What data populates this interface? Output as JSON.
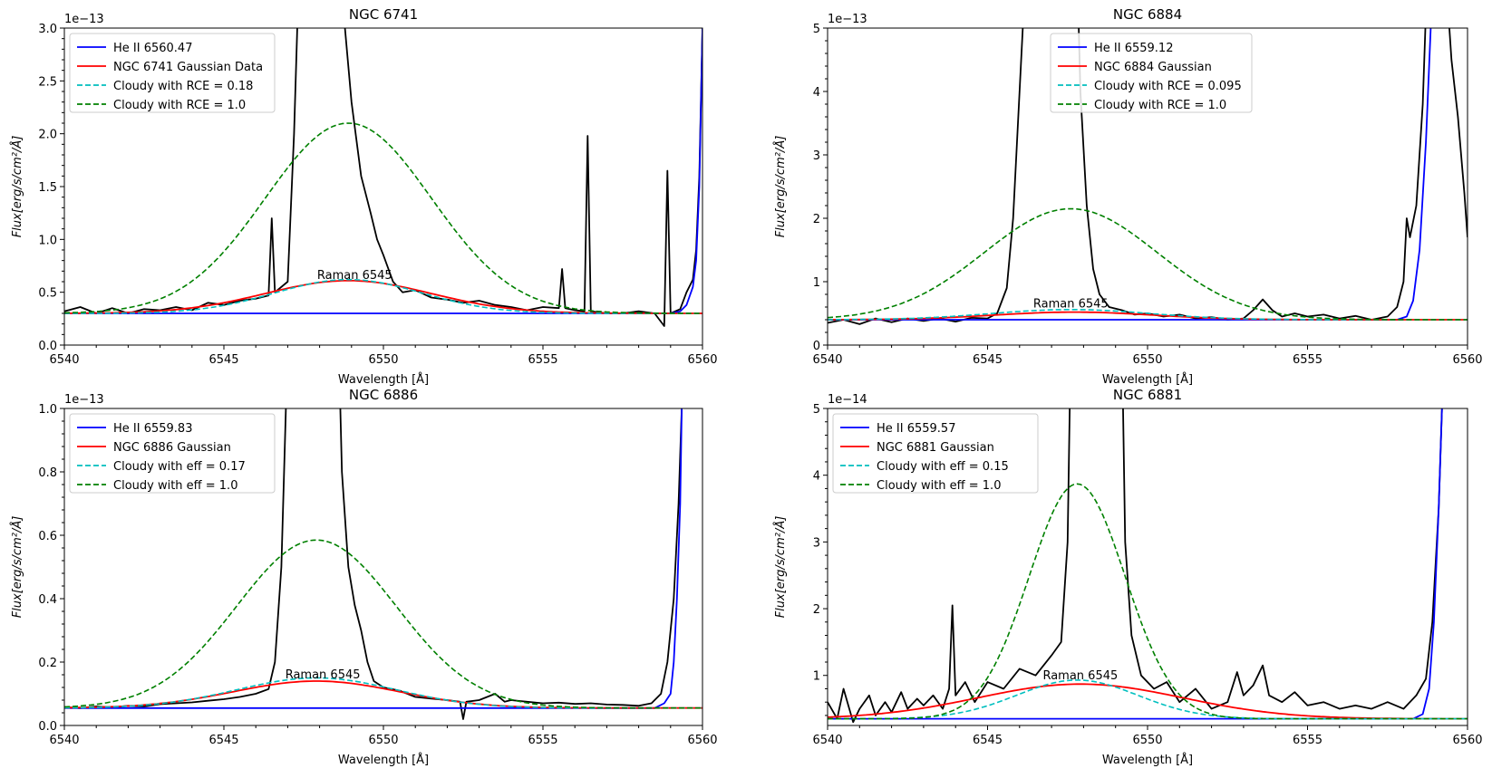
{
  "colors": {
    "observed": "#000000",
    "he_ii": "#0000ff",
    "gaussian": "#ff0000",
    "cloudy_low": "#00bfbf",
    "cloudy_high": "#008000"
  },
  "chart_data": [
    {
      "type": "line",
      "title": "NGC 6741",
      "xlabel": "Wavelength [Å]",
      "ylabel": "Flux[erg/s/cm²/Å]",
      "offset_text": "1e−13",
      "xlim": [
        6540,
        6560
      ],
      "ylim": [
        0,
        3.0
      ],
      "xticks": [
        6540,
        6545,
        6550,
        6555,
        6560
      ],
      "yticks": [
        0.0,
        0.5,
        1.0,
        1.5,
        2.0,
        2.5,
        3.0
      ],
      "ytick_labels": [
        "0.0",
        "0.5",
        "1.0",
        "1.5",
        "2.0",
        "2.5",
        "3.0"
      ],
      "legend_position": "upper-left",
      "annotation": {
        "text": "Raman 6545",
        "x": 6549.1,
        "y": 0.6
      },
      "baseline": 0.3,
      "series": [
        {
          "name": "He II 6560.47",
          "style": "solid",
          "color": "#0000ff"
        },
        {
          "name": "NGC 6741 Gaussian Data",
          "style": "solid",
          "color": "#ff0000"
        },
        {
          "name": "Cloudy with RCE = 0.18",
          "style": "dashed",
          "color": "#00bfbf"
        },
        {
          "name": "Cloudy with RCE = 1.0",
          "style": "dashed",
          "color": "#008000"
        }
      ],
      "gaussian": {
        "center": 6548.9,
        "sigma": 2.6,
        "amplitude": 0.31
      },
      "cloudy_low": {
        "center": 6548.9,
        "sigma": 2.3,
        "amplitude": 0.32
      },
      "cloudy_high": {
        "center": 6548.9,
        "sigma": 2.6,
        "amplitude": 1.8
      },
      "he_ii": {
        "start": 6559.0,
        "points": [
          [
            6559.0,
            0.3
          ],
          [
            6559.3,
            0.32
          ],
          [
            6559.5,
            0.38
          ],
          [
            6559.7,
            0.55
          ],
          [
            6559.8,
            0.8
          ],
          [
            6559.9,
            1.5
          ],
          [
            6560.0,
            3.0
          ]
        ]
      },
      "observed": [
        [
          6540,
          0.32
        ],
        [
          6540.5,
          0.36
        ],
        [
          6541,
          0.3
        ],
        [
          6541.5,
          0.35
        ],
        [
          6542,
          0.3
        ],
        [
          6542.5,
          0.34
        ],
        [
          6543,
          0.33
        ],
        [
          6543.5,
          0.36
        ],
        [
          6544,
          0.33
        ],
        [
          6544.5,
          0.4
        ],
        [
          6545,
          0.38
        ],
        [
          6545.5,
          0.42
        ],
        [
          6546,
          0.44
        ],
        [
          6546.4,
          0.47
        ],
        [
          6546.5,
          1.2
        ],
        [
          6546.6,
          0.5
        ],
        [
          6547.0,
          0.6
        ],
        [
          6547.2,
          2.0
        ],
        [
          6547.4,
          4.0
        ],
        [
          6548.5,
          4.0
        ],
        [
          6549.0,
          2.3
        ],
        [
          6549.3,
          1.6
        ],
        [
          6549.6,
          1.25
        ],
        [
          6549.8,
          1.0
        ],
        [
          6550.0,
          0.85
        ],
        [
          6550.3,
          0.6
        ],
        [
          6550.6,
          0.5
        ],
        [
          6551,
          0.52
        ],
        [
          6551.5,
          0.45
        ],
        [
          6552,
          0.43
        ],
        [
          6552.5,
          0.4
        ],
        [
          6553,
          0.42
        ],
        [
          6553.5,
          0.38
        ],
        [
          6554,
          0.36
        ],
        [
          6554.5,
          0.33
        ],
        [
          6555,
          0.36
        ],
        [
          6555.5,
          0.35
        ],
        [
          6555.6,
          0.72
        ],
        [
          6555.7,
          0.35
        ],
        [
          6556,
          0.33
        ],
        [
          6556.3,
          0.32
        ],
        [
          6556.4,
          1.98
        ],
        [
          6556.5,
          0.32
        ],
        [
          6557,
          0.3
        ],
        [
          6557.5,
          0.3
        ],
        [
          6558,
          0.32
        ],
        [
          6558.5,
          0.3
        ],
        [
          6558.8,
          0.18
        ],
        [
          6558.9,
          1.65
        ],
        [
          6559.0,
          0.3
        ],
        [
          6559.3,
          0.34
        ],
        [
          6559.5,
          0.5
        ],
        [
          6559.7,
          0.62
        ],
        [
          6559.8,
          0.9
        ],
        [
          6559.9,
          1.6
        ],
        [
          6560.0,
          3.0
        ]
      ]
    },
    {
      "type": "line",
      "title": "NGC 6884",
      "xlabel": "Wavelength [Å]",
      "ylabel": "Flux[erg/s/cm²/Å]",
      "offset_text": "1e−13",
      "xlim": [
        6540,
        6560
      ],
      "ylim": [
        0,
        5
      ],
      "xticks": [
        6540,
        6545,
        6550,
        6555,
        6560
      ],
      "yticks": [
        0,
        1,
        2,
        3,
        4,
        5
      ],
      "ytick_labels": [
        "0",
        "1",
        "2",
        "3",
        "4",
        "5"
      ],
      "legend_position": "upper-center",
      "annotation": {
        "text": "Raman 6545",
        "x": 6547.6,
        "y": 0.55
      },
      "baseline": 0.4,
      "series": [
        {
          "name": "He II 6559.12",
          "style": "solid",
          "color": "#0000ff"
        },
        {
          "name": "NGC 6884 Gaussian",
          "style": "solid",
          "color": "#ff0000"
        },
        {
          "name": "Cloudy with RCE = 0.095",
          "style": "dashed",
          "color": "#00bfbf"
        },
        {
          "name": "Cloudy with RCE = 1.0",
          "style": "dashed",
          "color": "#008000"
        }
      ],
      "gaussian": {
        "center": 6547.7,
        "sigma": 2.5,
        "amplitude": 0.12
      },
      "cloudy_low": {
        "center": 6547.6,
        "sigma": 2.5,
        "amplitude": 0.16
      },
      "cloudy_high": {
        "center": 6547.6,
        "sigma": 2.7,
        "amplitude": 1.75
      },
      "he_ii": {
        "start": 6557.8,
        "points": [
          [
            6557.8,
            0.4
          ],
          [
            6558.1,
            0.45
          ],
          [
            6558.3,
            0.7
          ],
          [
            6558.5,
            1.5
          ],
          [
            6558.7,
            3.2
          ],
          [
            6558.85,
            5.0
          ]
        ]
      },
      "observed": [
        [
          6540,
          0.35
        ],
        [
          6540.5,
          0.4
        ],
        [
          6541,
          0.33
        ],
        [
          6541.5,
          0.42
        ],
        [
          6542,
          0.36
        ],
        [
          6542.5,
          0.42
        ],
        [
          6543,
          0.38
        ],
        [
          6543.5,
          0.42
        ],
        [
          6544,
          0.37
        ],
        [
          6544.5,
          0.43
        ],
        [
          6545,
          0.42
        ],
        [
          6545.3,
          0.5
        ],
        [
          6545.6,
          0.9
        ],
        [
          6545.8,
          2.0
        ],
        [
          6546.0,
          4.0
        ],
        [
          6546.2,
          6.0
        ],
        [
          6547.8,
          6.0
        ],
        [
          6547.9,
          4.0
        ],
        [
          6548.1,
          2.2
        ],
        [
          6548.3,
          1.2
        ],
        [
          6548.5,
          0.8
        ],
        [
          6548.8,
          0.6
        ],
        [
          6549.2,
          0.55
        ],
        [
          6549.6,
          0.48
        ],
        [
          6550,
          0.5
        ],
        [
          6550.5,
          0.45
        ],
        [
          6551,
          0.48
        ],
        [
          6551.5,
          0.42
        ],
        [
          6552,
          0.44
        ],
        [
          6552.5,
          0.4
        ],
        [
          6553,
          0.42
        ],
        [
          6553.3,
          0.55
        ],
        [
          6553.6,
          0.72
        ],
        [
          6553.9,
          0.55
        ],
        [
          6554.2,
          0.45
        ],
        [
          6554.6,
          0.5
        ],
        [
          6555,
          0.45
        ],
        [
          6555.5,
          0.48
        ],
        [
          6556,
          0.42
        ],
        [
          6556.5,
          0.46
        ],
        [
          6557,
          0.4
        ],
        [
          6557.5,
          0.45
        ],
        [
          6557.8,
          0.6
        ],
        [
          6558.0,
          1.0
        ],
        [
          6558.1,
          2.0
        ],
        [
          6558.2,
          1.7
        ],
        [
          6558.4,
          2.2
        ],
        [
          6558.6,
          3.8
        ],
        [
          6558.75,
          6.0
        ],
        [
          6559.3,
          6.0
        ],
        [
          6559.5,
          4.5
        ],
        [
          6559.7,
          3.6
        ],
        [
          6559.9,
          2.4
        ],
        [
          6560,
          1.7
        ]
      ]
    },
    {
      "type": "line",
      "title": "NGC 6886",
      "xlabel": "Wavelength [Å]",
      "ylabel": "Flux[erg/s/cm²/Å]",
      "offset_text": "1e−13",
      "xlim": [
        6540,
        6560
      ],
      "ylim": [
        0,
        1.0
      ],
      "xticks": [
        6540,
        6545,
        6550,
        6555,
        6560
      ],
      "yticks": [
        0.0,
        0.2,
        0.4,
        0.6,
        0.8,
        1.0
      ],
      "ytick_labels": [
        "0.0",
        "0.2",
        "0.4",
        "0.6",
        "0.8",
        "1.0"
      ],
      "legend_position": "upper-left",
      "annotation": {
        "text": "Raman 6545",
        "x": 6548.1,
        "y": 0.14
      },
      "baseline": 0.055,
      "series": [
        {
          "name": "He II 6559.83",
          "style": "solid",
          "color": "#0000ff"
        },
        {
          "name": "NGC 6886 Gaussian",
          "style": "solid",
          "color": "#ff0000"
        },
        {
          "name": "Cloudy with eff = 0.17",
          "style": "dashed",
          "color": "#00bfbf"
        },
        {
          "name": "Cloudy with eff = 1.0",
          "style": "dashed",
          "color": "#008000"
        }
      ],
      "gaussian": {
        "center": 6547.9,
        "sigma": 2.6,
        "amplitude": 0.085
      },
      "cloudy_low": {
        "center": 6547.9,
        "sigma": 2.5,
        "amplitude": 0.095
      },
      "cloudy_high": {
        "center": 6547.9,
        "sigma": 2.5,
        "amplitude": 0.53
      },
      "he_ii": {
        "start": 6558.5,
        "points": [
          [
            6558.5,
            0.055
          ],
          [
            6558.8,
            0.07
          ],
          [
            6559.0,
            0.1
          ],
          [
            6559.1,
            0.2
          ],
          [
            6559.2,
            0.4
          ],
          [
            6559.3,
            0.7
          ],
          [
            6559.35,
            1.0
          ]
        ]
      },
      "observed": [
        [
          6540,
          0.058
        ],
        [
          6540.5,
          0.055
        ],
        [
          6541,
          0.06
        ],
        [
          6541.5,
          0.057
        ],
        [
          6542,
          0.062
        ],
        [
          6542.5,
          0.06
        ],
        [
          6543,
          0.067
        ],
        [
          6543.5,
          0.07
        ],
        [
          6544,
          0.073
        ],
        [
          6544.5,
          0.078
        ],
        [
          6545,
          0.083
        ],
        [
          6545.5,
          0.09
        ],
        [
          6546,
          0.1
        ],
        [
          6546.4,
          0.115
        ],
        [
          6546.6,
          0.2
        ],
        [
          6546.8,
          0.5
        ],
        [
          6547.0,
          1.2
        ],
        [
          6548.6,
          1.2
        ],
        [
          6548.7,
          0.8
        ],
        [
          6548.9,
          0.5
        ],
        [
          6549.1,
          0.38
        ],
        [
          6549.3,
          0.3
        ],
        [
          6549.5,
          0.2
        ],
        [
          6549.7,
          0.14
        ],
        [
          6550.0,
          0.12
        ],
        [
          6550.5,
          0.11
        ],
        [
          6551,
          0.09
        ],
        [
          6551.5,
          0.085
        ],
        [
          6552,
          0.08
        ],
        [
          6552.4,
          0.075
        ],
        [
          6552.5,
          0.02
        ],
        [
          6552.6,
          0.075
        ],
        [
          6553,
          0.08
        ],
        [
          6553.5,
          0.1
        ],
        [
          6553.8,
          0.075
        ],
        [
          6554,
          0.08
        ],
        [
          6554.5,
          0.075
        ],
        [
          6555,
          0.07
        ],
        [
          6555.5,
          0.072
        ],
        [
          6556,
          0.068
        ],
        [
          6556.5,
          0.07
        ],
        [
          6557,
          0.066
        ],
        [
          6557.5,
          0.065
        ],
        [
          6558,
          0.062
        ],
        [
          6558.4,
          0.07
        ],
        [
          6558.7,
          0.1
        ],
        [
          6558.9,
          0.2
        ],
        [
          6559.1,
          0.4
        ],
        [
          6559.25,
          0.7
        ],
        [
          6559.35,
          1.0
        ]
      ]
    },
    {
      "type": "line",
      "title": "NGC 6881",
      "xlabel": "Wavelength [Å]",
      "ylabel": "Flux[erg/s/cm²/Å]",
      "offset_text": "1e−14",
      "xlim": [
        6540,
        6560
      ],
      "ylim": [
        0.25,
        5
      ],
      "xticks": [
        6540,
        6545,
        6550,
        6555,
        6560
      ],
      "yticks": [
        1,
        2,
        3,
        4,
        5
      ],
      "ytick_labels": [
        "1",
        "2",
        "3",
        "4",
        "5"
      ],
      "legend_position": "upper-left",
      "annotation": {
        "text": "Raman 6545",
        "x": 6547.9,
        "y": 0.9
      },
      "baseline": 0.35,
      "series": [
        {
          "name": "He II 6559.57",
          "style": "solid",
          "color": "#0000ff"
        },
        {
          "name": "NGC 6881 Gaussian",
          "style": "solid",
          "color": "#ff0000"
        },
        {
          "name": "Cloudy with eff = 0.15",
          "style": "dashed",
          "color": "#00bfbf"
        },
        {
          "name": "Cloudy with eff = 1.0",
          "style": "dashed",
          "color": "#008000"
        }
      ],
      "gaussian": {
        "center": 6547.9,
        "sigma": 3.2,
        "amplitude": 0.52
      },
      "cloudy_low": {
        "center": 6547.8,
        "sigma": 1.9,
        "amplitude": 0.58
      },
      "cloudy_high": {
        "center": 6547.8,
        "sigma": 1.5,
        "amplitude": 3.52
      },
      "he_ii": {
        "start": 6558.3,
        "points": [
          [
            6558.3,
            0.35
          ],
          [
            6558.6,
            0.42
          ],
          [
            6558.8,
            0.8
          ],
          [
            6558.95,
            1.8
          ],
          [
            6559.1,
            3.5
          ],
          [
            6559.2,
            5.0
          ]
        ]
      },
      "observed": [
        [
          6540,
          0.6
        ],
        [
          6540.3,
          0.35
        ],
        [
          6540.5,
          0.8
        ],
        [
          6540.8,
          0.3
        ],
        [
          6541,
          0.5
        ],
        [
          6541.3,
          0.7
        ],
        [
          6541.5,
          0.4
        ],
        [
          6541.8,
          0.6
        ],
        [
          6542,
          0.45
        ],
        [
          6542.3,
          0.75
        ],
        [
          6542.5,
          0.5
        ],
        [
          6542.8,
          0.65
        ],
        [
          6543,
          0.55
        ],
        [
          6543.3,
          0.7
        ],
        [
          6543.6,
          0.5
        ],
        [
          6543.8,
          0.8
        ],
        [
          6543.9,
          2.05
        ],
        [
          6544.0,
          0.7
        ],
        [
          6544.3,
          0.9
        ],
        [
          6544.6,
          0.6
        ],
        [
          6545,
          0.9
        ],
        [
          6545.5,
          0.8
        ],
        [
          6546,
          1.1
        ],
        [
          6546.5,
          1.0
        ],
        [
          6547.0,
          1.3
        ],
        [
          6547.3,
          1.5
        ],
        [
          6547.5,
          3.0
        ],
        [
          6547.6,
          6.0
        ],
        [
          6549.2,
          6.0
        ],
        [
          6549.3,
          3.0
        ],
        [
          6549.5,
          1.6
        ],
        [
          6549.8,
          1.0
        ],
        [
          6550.2,
          0.8
        ],
        [
          6550.6,
          0.9
        ],
        [
          6551,
          0.6
        ],
        [
          6551.5,
          0.8
        ],
        [
          6552,
          0.5
        ],
        [
          6552.5,
          0.6
        ],
        [
          6552.8,
          1.05
        ],
        [
          6553.0,
          0.7
        ],
        [
          6553.3,
          0.85
        ],
        [
          6553.6,
          1.15
        ],
        [
          6553.8,
          0.7
        ],
        [
          6554.2,
          0.6
        ],
        [
          6554.6,
          0.75
        ],
        [
          6555,
          0.55
        ],
        [
          6555.5,
          0.6
        ],
        [
          6556,
          0.5
        ],
        [
          6556.5,
          0.55
        ],
        [
          6557,
          0.5
        ],
        [
          6557.5,
          0.6
        ],
        [
          6558,
          0.5
        ],
        [
          6558.4,
          0.7
        ],
        [
          6558.7,
          0.95
        ],
        [
          6558.9,
          1.8
        ],
        [
          6559.1,
          3.5
        ],
        [
          6559.2,
          5.0
        ]
      ]
    }
  ]
}
